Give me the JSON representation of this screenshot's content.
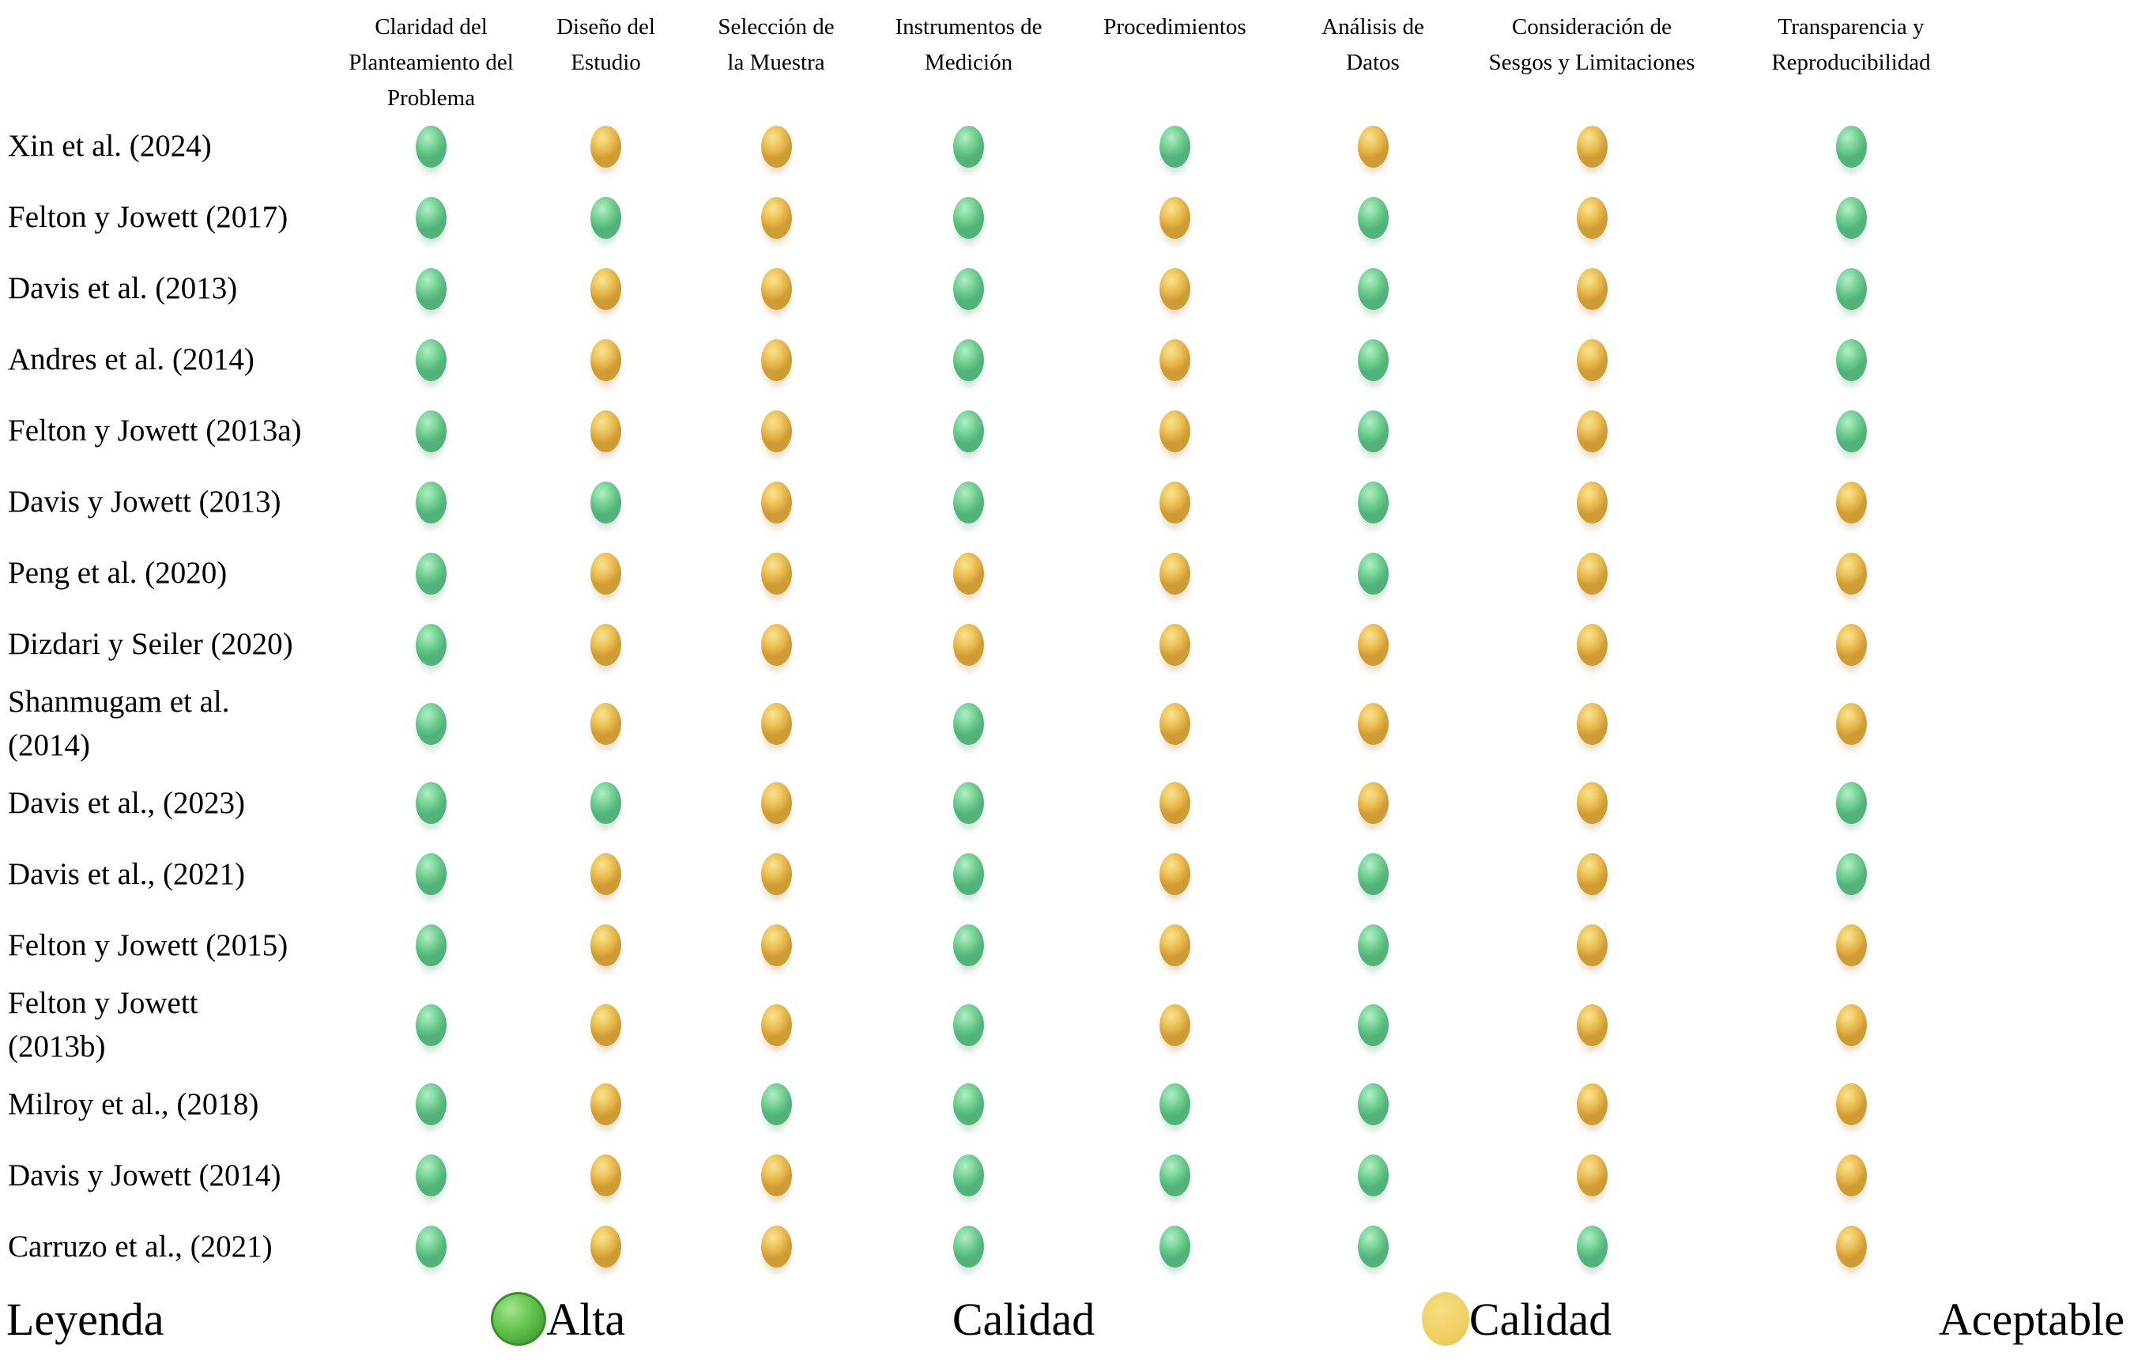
{
  "chart_data": {
    "type": "heatmap",
    "subtype": "dot-matrix-quality-assessment",
    "columns": [
      "Claridad del\nPlanteamiento del\nProblema",
      "Diseño del\nEstudio",
      "Selección de\nla Muestra",
      "Instrumentos de\nMedición",
      "Procedimientos",
      "Análisis de\nDatos",
      "Consideración de\nSesgos y Limitaciones",
      "Transparencia y\nReproducibilidad"
    ],
    "rows": [
      {
        "label": "Xin et al. (2024)",
        "values": [
          "green",
          "yellow",
          "yellow",
          "green",
          "green",
          "yellow",
          "yellow",
          "green"
        ]
      },
      {
        "label": "Felton y Jowett (2017)",
        "values": [
          "green",
          "green",
          "yellow",
          "green",
          "yellow",
          "green",
          "yellow",
          "green"
        ]
      },
      {
        "label": "Davis et al. (2013)",
        "values": [
          "green",
          "yellow",
          "yellow",
          "green",
          "yellow",
          "green",
          "yellow",
          "green"
        ]
      },
      {
        "label": "Andres et al. (2014)",
        "values": [
          "green",
          "yellow",
          "yellow",
          "green",
          "yellow",
          "green",
          "yellow",
          "green"
        ]
      },
      {
        "label": "Felton y Jowett (2013a)",
        "values": [
          "green",
          "yellow",
          "yellow",
          "green",
          "yellow",
          "green",
          "yellow",
          "green"
        ]
      },
      {
        "label": "Davis y Jowett (2013)",
        "values": [
          "green",
          "green",
          "yellow",
          "green",
          "yellow",
          "green",
          "yellow",
          "yellow"
        ]
      },
      {
        "label": "Peng et al. (2020)",
        "values": [
          "green",
          "yellow",
          "yellow",
          "yellow",
          "yellow",
          "green",
          "yellow",
          "yellow"
        ]
      },
      {
        "label": "Dizdari y Seiler (2020)",
        "values": [
          "green",
          "yellow",
          "yellow",
          "yellow",
          "yellow",
          "yellow",
          "yellow",
          "yellow"
        ]
      },
      {
        "label": "Shanmugam et al.\n(2014)",
        "values": [
          "green",
          "yellow",
          "yellow",
          "green",
          "yellow",
          "yellow",
          "yellow",
          "yellow"
        ]
      },
      {
        "label": "Davis et al., (2023)",
        "values": [
          "green",
          "green",
          "yellow",
          "green",
          "yellow",
          "yellow",
          "yellow",
          "green"
        ]
      },
      {
        "label": "Davis et al., (2021)",
        "values": [
          "green",
          "yellow",
          "yellow",
          "green",
          "yellow",
          "green",
          "yellow",
          "green"
        ]
      },
      {
        "label": "Felton y Jowett (2015)",
        "values": [
          "green",
          "yellow",
          "yellow",
          "green",
          "yellow",
          "green",
          "yellow",
          "yellow"
        ]
      },
      {
        "label": "Felton y Jowett\n(2013b)",
        "values": [
          "green",
          "yellow",
          "yellow",
          "green",
          "yellow",
          "green",
          "yellow",
          "yellow"
        ]
      },
      {
        "label": "Milroy et al., (2018)",
        "values": [
          "green",
          "yellow",
          "green",
          "green",
          "green",
          "green",
          "yellow",
          "yellow"
        ]
      },
      {
        "label": "Davis y Jowett (2014)",
        "values": [
          "green",
          "yellow",
          "yellow",
          "green",
          "green",
          "green",
          "yellow",
          "yellow"
        ]
      },
      {
        "label": "Carruzo et al., (2021)",
        "values": [
          "green",
          "yellow",
          "yellow",
          "green",
          "green",
          "green",
          "green",
          "yellow"
        ]
      }
    ],
    "legend": {
      "title": "Leyenda",
      "entries": [
        {
          "dot": "green",
          "label": "Alta"
        },
        {
          "dot": null,
          "label": "Calidad"
        },
        {
          "dot": "yellow",
          "label": "Calidad"
        },
        {
          "dot": null,
          "label": "Aceptable"
        }
      ],
      "value_meaning": {
        "green": "Alta Calidad",
        "yellow": "Calidad Aceptable"
      }
    },
    "colors": {
      "green": "#7fd89c",
      "yellow": "#eec45b",
      "legend_green": "#55b948",
      "legend_yellow": "#f0d065"
    },
    "layout_hints": {
      "grid": false,
      "legend_position": "bottom-justified"
    }
  }
}
